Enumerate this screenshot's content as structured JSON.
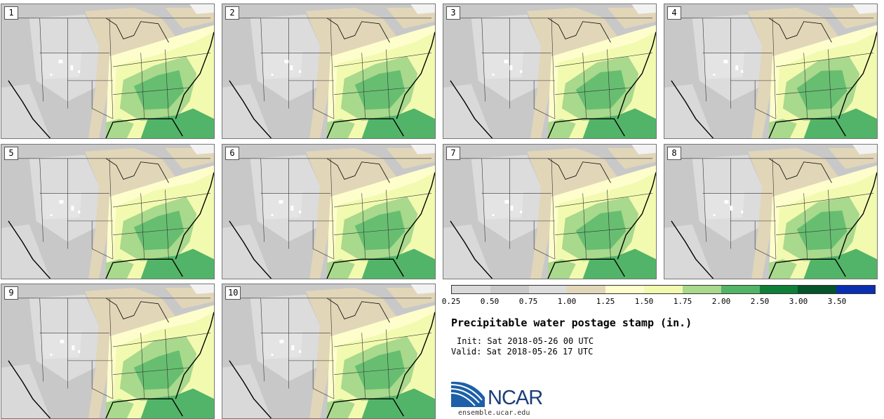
{
  "title": "Precipitable water postage stamp (in.)",
  "init": "Init: Sat 2018-05-26 00 UTC",
  "valid": "Valid: Sat 2018-05-26 17 UTC",
  "members": [
    "1",
    "2",
    "3",
    "4",
    "5",
    "6",
    "7",
    "8",
    "9",
    "10"
  ],
  "colorbar": {
    "ticks": [
      "0.25",
      "0.50",
      "0.75",
      "1.00",
      "1.25",
      "1.50",
      "1.75",
      "2.00",
      "2.50",
      "3.00",
      "3.50"
    ],
    "colors": [
      "#d9d9d9",
      "#c8c8c8",
      "#dcdcdc",
      "#e2d6b8",
      "#fefecd",
      "#f2fab0",
      "#a8d98c",
      "#52b468",
      "#0e7e38",
      "#05542a",
      "#0b2fb2"
    ]
  },
  "logo": {
    "name": "NCAR",
    "url": "ensemble.ucar.edu"
  }
}
